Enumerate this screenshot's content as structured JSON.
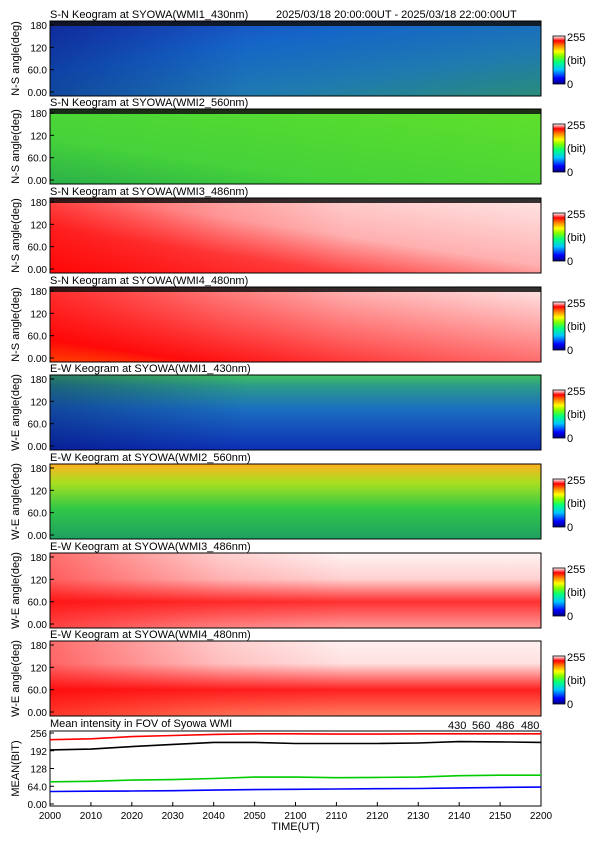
{
  "header": {
    "time_range": "2025/03/18 20:00:00UT - 2025/03/18 22:00:00UT"
  },
  "colors": {
    "colorbar": [
      "#000080",
      "#0000ff",
      "#00c8ff",
      "#00ff80",
      "#80ff00",
      "#ffff00",
      "#ff8000",
      "#ff0000",
      "#ffffff"
    ],
    "blue_panel": "#1d63c4",
    "green_panel": "#3fd03a",
    "red_panel": "#ff2a2a",
    "series_430": "#0000ff",
    "series_560": "#00cc00",
    "series_486": "#ff0000",
    "series_480": "#000000"
  },
  "colorbar": {
    "max_label": "255",
    "unit_label": "(bit)",
    "min_label": "0"
  },
  "panels": [
    {
      "title": "S-N Keogram at SYOWA(WMI1_430nm)",
      "ylabel": "N-S angle(deg)",
      "yticks": [
        "180",
        "120",
        "60.0",
        "0.00"
      ],
      "palette": "blue"
    },
    {
      "title": "S-N Keogram at SYOWA(WMI2_560nm)",
      "ylabel": "N-S angle(deg)",
      "yticks": [
        "180",
        "120",
        "60.0",
        "0.00"
      ],
      "palette": "green"
    },
    {
      "title": "S-N Keogram at SYOWA(WMI3_486nm)",
      "ylabel": "N-S angle(deg)",
      "yticks": [
        "180",
        "120",
        "60.0",
        "0.00"
      ],
      "palette": "red"
    },
    {
      "title": "S-N Keogram at SYOWA(WMI4_480nm)",
      "ylabel": "N-S angle(deg)",
      "yticks": [
        "180",
        "120",
        "60.0",
        "0.00"
      ],
      "palette": "red2"
    },
    {
      "title": "E-W Keogram at SYOWA(WMI1_430nm)",
      "ylabel": "W-E angle(deg)",
      "yticks": [
        "180",
        "120",
        "60.0",
        "0.00"
      ],
      "palette": "blue2"
    },
    {
      "title": "E-W Keogram at SYOWA(WMI2_560nm)",
      "ylabel": "W-E angle(deg)",
      "yticks": [
        "180",
        "120",
        "60.0",
        "0.00"
      ],
      "palette": "green2"
    },
    {
      "title": "E-W Keogram at SYOWA(WMI3_486nm)",
      "ylabel": "W-E angle(deg)",
      "yticks": [
        "180",
        "120",
        "60.0",
        "0.00"
      ],
      "palette": "red3"
    },
    {
      "title": "E-W Keogram at SYOWA(WMI4_480nm)",
      "ylabel": "W-E angle(deg)",
      "yticks": [
        "180",
        "120",
        "60.0",
        "0.00"
      ],
      "palette": "red4"
    }
  ],
  "chart_data": {
    "type": "line",
    "title": "Mean intensity in FOV of Syowa WMI",
    "ylabel": "MEAN(BIT)",
    "xlabel": "TIME(UT)",
    "x": [
      "2000",
      "2010",
      "2020",
      "2030",
      "2040",
      "2050",
      "2100",
      "2110",
      "2120",
      "2130",
      "2140",
      "2150",
      "2200"
    ],
    "ylim": [
      0,
      256
    ],
    "yticks": [
      "256",
      "192",
      "128",
      "64.0",
      "0.00"
    ],
    "xticks": [
      "2000",
      "2010",
      "2020",
      "2030",
      "2040",
      "2050",
      "2100",
      "2110",
      "2120",
      "2130",
      "2140",
      "2150",
      "2200"
    ],
    "legend": [
      "430",
      "560",
      "486",
      "480"
    ],
    "series": [
      {
        "name": "430",
        "values": [
          45,
          46,
          47,
          48,
          50,
          52,
          53,
          54,
          55,
          56,
          58,
          60,
          61
        ]
      },
      {
        "name": "560",
        "values": [
          80,
          82,
          86,
          88,
          92,
          97,
          97,
          95,
          96,
          97,
          102,
          104,
          104
        ]
      },
      {
        "name": "486",
        "values": [
          232,
          235,
          243,
          247,
          251,
          253,
          253,
          252,
          252,
          253,
          253,
          253,
          253
        ]
      },
      {
        "name": "480",
        "values": [
          195,
          198,
          207,
          215,
          222,
          222,
          218,
          218,
          218,
          220,
          225,
          224,
          222
        ]
      }
    ]
  }
}
